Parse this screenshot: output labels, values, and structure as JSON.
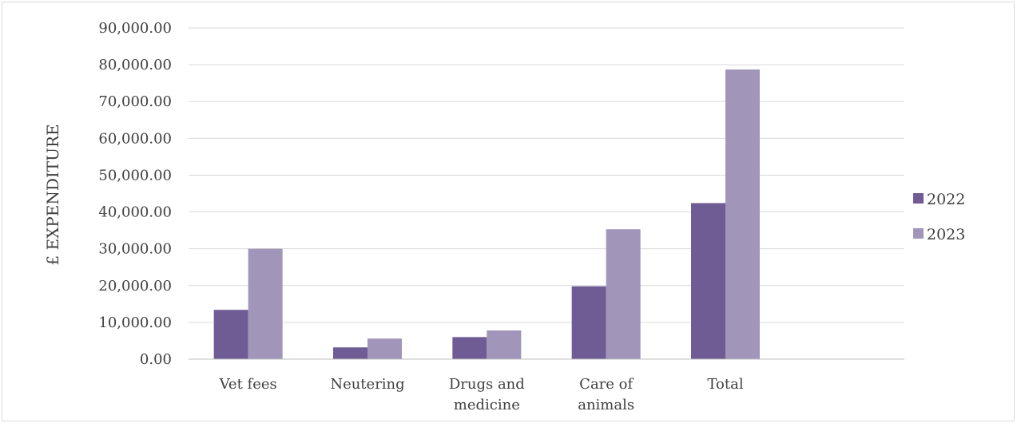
{
  "chart_data": {
    "type": "bar",
    "ylabel": "£ EXPENDITURE",
    "categories": [
      [
        "Vet fees"
      ],
      [
        "Neutering"
      ],
      [
        "Drugs and",
        "medicine"
      ],
      [
        "Care of",
        "animals"
      ],
      [
        "Total"
      ]
    ],
    "series": [
      {
        "name": "2022",
        "color": "#6f5c94",
        "values": [
          13400,
          3200,
          6000,
          19800,
          42400
        ]
      },
      {
        "name": "2023",
        "color": "#a195ba",
        "values": [
          30000,
          5600,
          7800,
          35300,
          78700
        ]
      }
    ],
    "ylim": [
      0,
      90000
    ],
    "yticks": [
      "0.00",
      "10,000.00",
      "20,000.00",
      "30,000.00",
      "40,000.00",
      "50,000.00",
      "60,000.00",
      "70,000.00",
      "80,000.00",
      "90,000.00"
    ],
    "grid": true,
    "legend_position": "right"
  }
}
